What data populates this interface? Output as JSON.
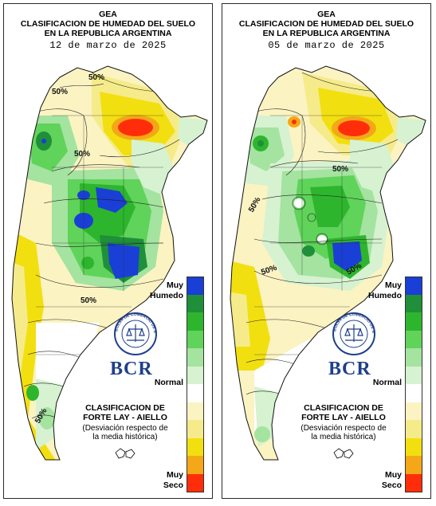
{
  "panels": [
    {
      "header_org": "GEA",
      "header_title_1": "CLASIFICACION DE HUMEDAD DEL SUELO",
      "header_title_2": "EN LA REPUBLICA ARGENTINA",
      "date": "12 de marzo de 2025",
      "contour_labels": [
        "50%",
        "50%",
        "50%",
        "50%",
        "50%"
      ]
    },
    {
      "header_org": "GEA",
      "header_title_1": "CLASIFICACION DE HUMEDAD DEL SUELO",
      "header_title_2": "EN LA REPUBLICA ARGENTINA",
      "date": "05 de marzo de 2025",
      "contour_labels": [
        "50%",
        "50%",
        "50%",
        "50%"
      ]
    }
  ],
  "legend": {
    "top_label_1": "Muy",
    "top_label_2": "Humedo",
    "middle_label": "Normal",
    "bottom_label_1": "Muy",
    "bottom_label_2": "Seco",
    "colors": [
      "#1a3fd6",
      "#1f8f3a",
      "#2eb52e",
      "#5fd35a",
      "#a4e3a0",
      "#d6f2d1",
      "#ffffff",
      "#fbf3c2",
      "#f6eb8a",
      "#f2df10",
      "#f4a818",
      "#ff2d0a"
    ]
  },
  "branding": {
    "logo_text": "BCR",
    "seal_text": "BOLSA DE COMERCIO DE ROSARIO"
  },
  "classification": {
    "line1": "CLASIFICACION DE",
    "line2": "FORTE LAY - AIELLO",
    "line3": "(Desviación respecto de",
    "line4": "la media histórica)"
  }
}
